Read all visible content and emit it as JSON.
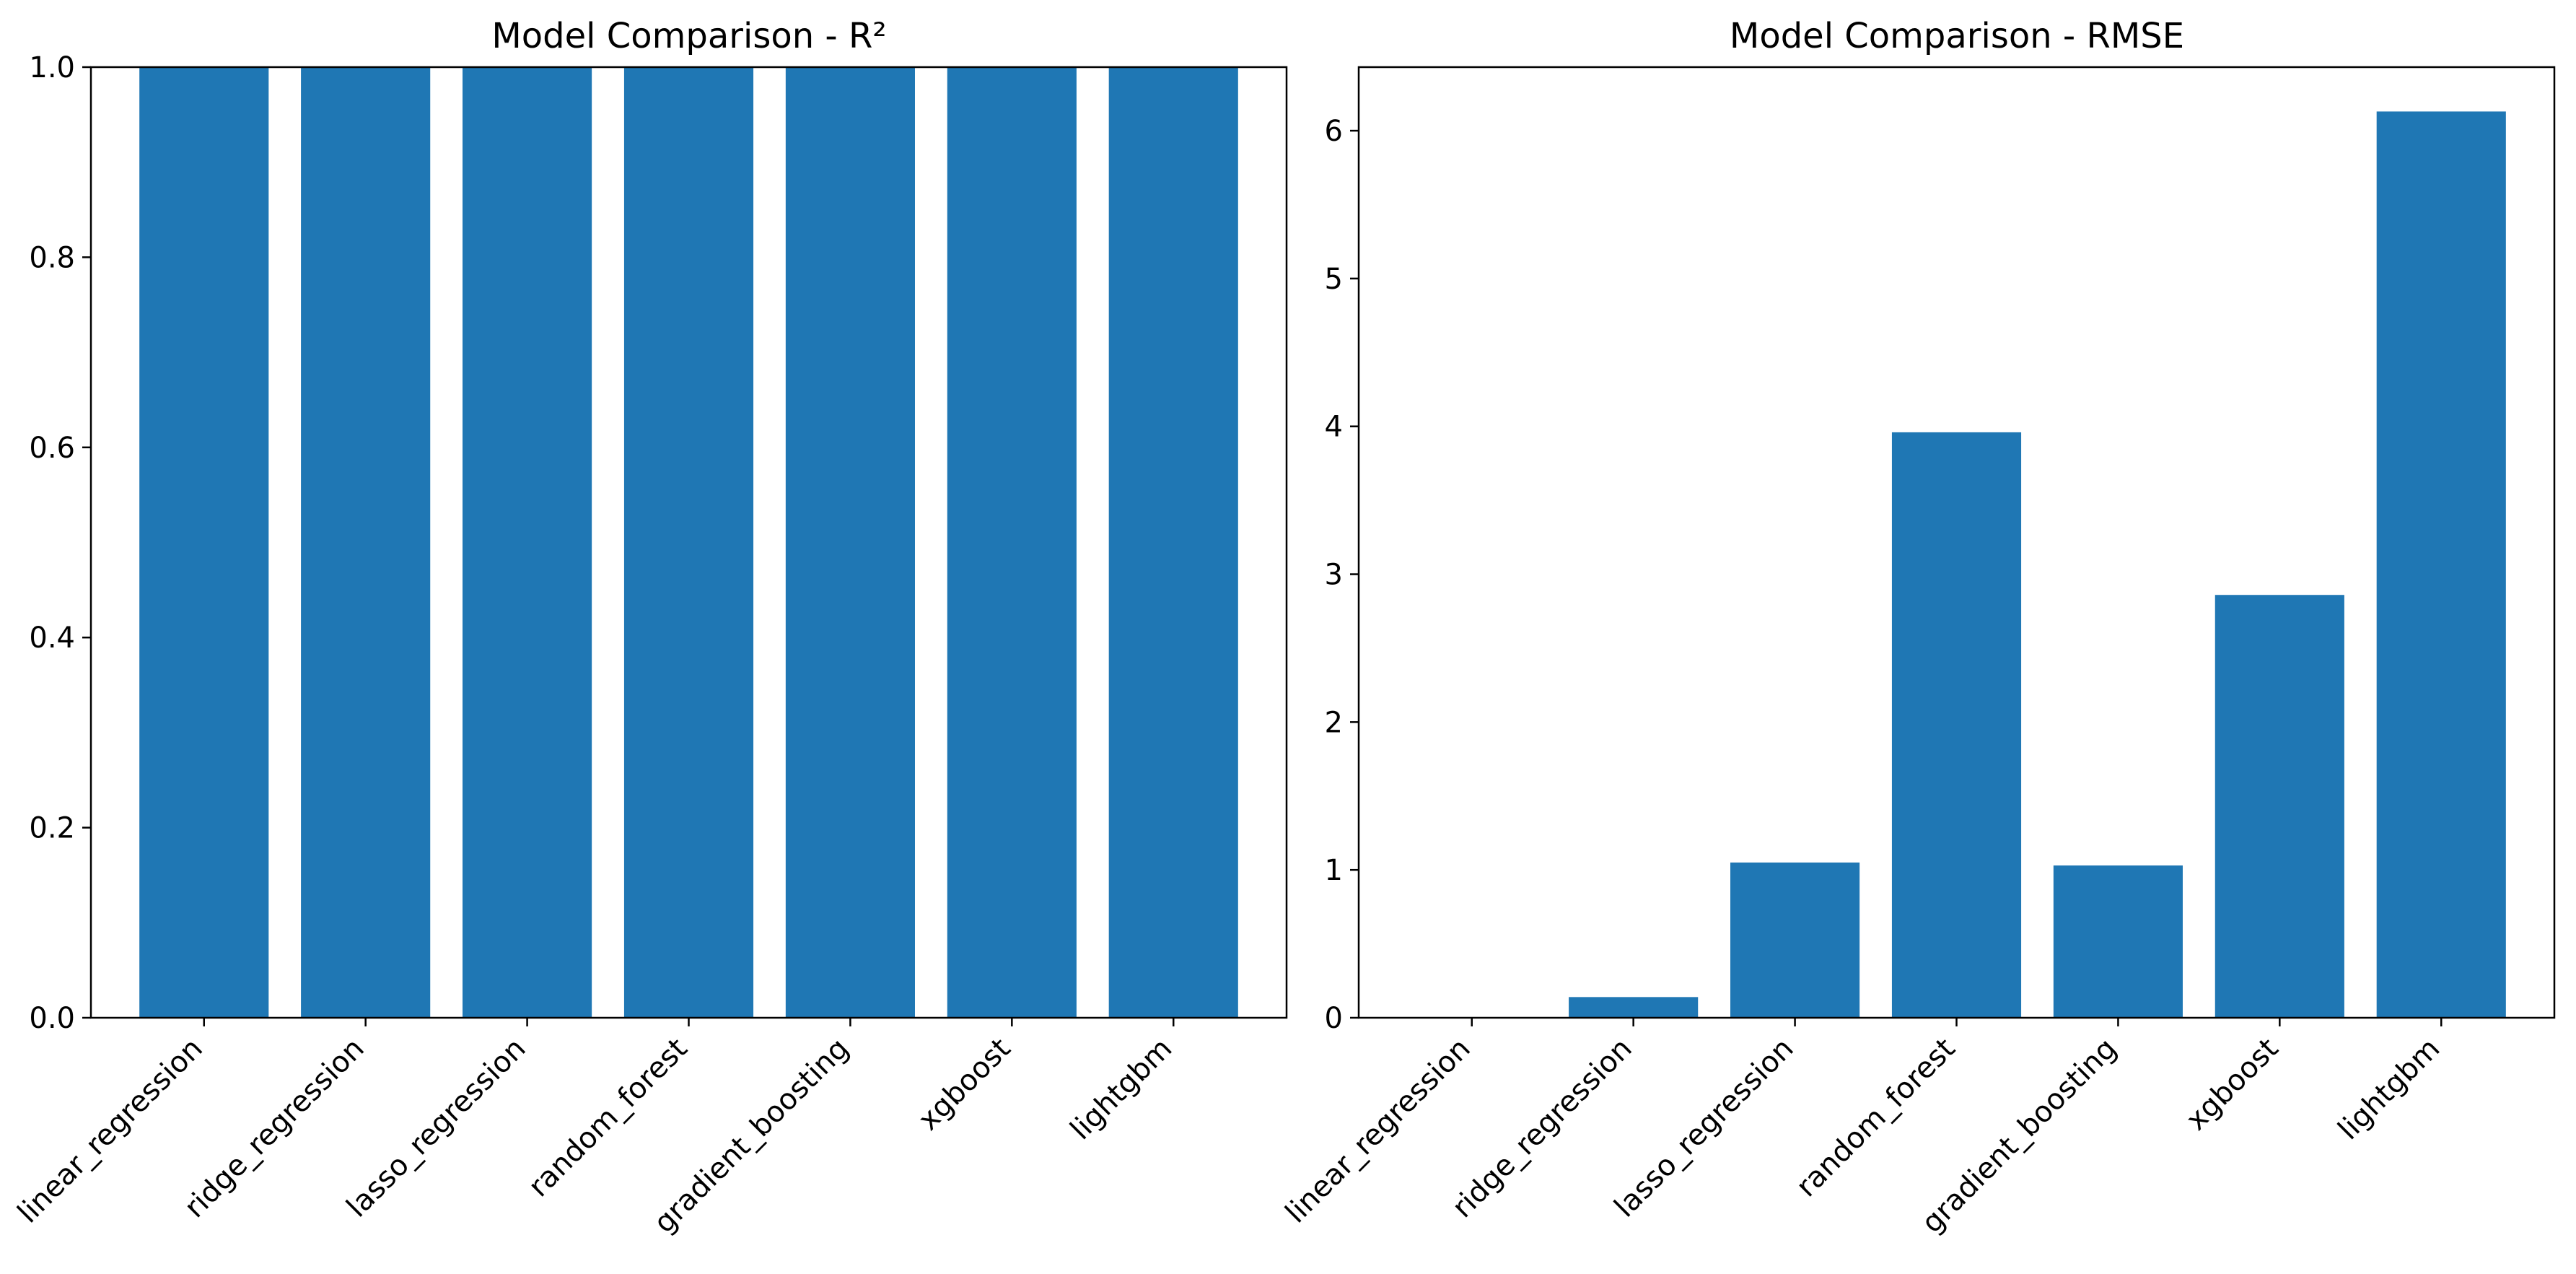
{
  "chart_data": [
    {
      "type": "bar",
      "title": "Model Comparison - R²",
      "xlabel": "",
      "ylabel": "",
      "categories": [
        "linear_regression",
        "ridge_regression",
        "lasso_regression",
        "random_forest",
        "gradient_boosting",
        "xgboost",
        "lightgbm"
      ],
      "values": [
        1.0,
        1.0,
        1.0,
        1.0,
        1.0,
        1.0,
        1.0
      ],
      "ylim": [
        0,
        1.0
      ],
      "yticks": [
        0.0,
        0.2,
        0.4,
        0.6,
        0.8,
        1.0
      ],
      "ytick_labels": [
        "0.0",
        "0.2",
        "0.4",
        "0.6",
        "0.8",
        "1.0"
      ],
      "color": "#1f77b4",
      "grid": false
    },
    {
      "type": "bar",
      "title": "Model Comparison - RMSE",
      "xlabel": "",
      "ylabel": "",
      "categories": [
        "linear_regression",
        "ridge_regression",
        "lasso_regression",
        "random_forest",
        "gradient_boosting",
        "xgboost",
        "lightgbm"
      ],
      "values": [
        0.0,
        0.14,
        1.05,
        3.96,
        1.03,
        2.86,
        6.13
      ],
      "ylim": [
        0,
        6.43
      ],
      "yticks": [
        0,
        1,
        2,
        3,
        4,
        5,
        6
      ],
      "ytick_labels": [
        "0",
        "1",
        "2",
        "3",
        "4",
        "5",
        "6"
      ],
      "color": "#1f77b4",
      "grid": false
    }
  ]
}
